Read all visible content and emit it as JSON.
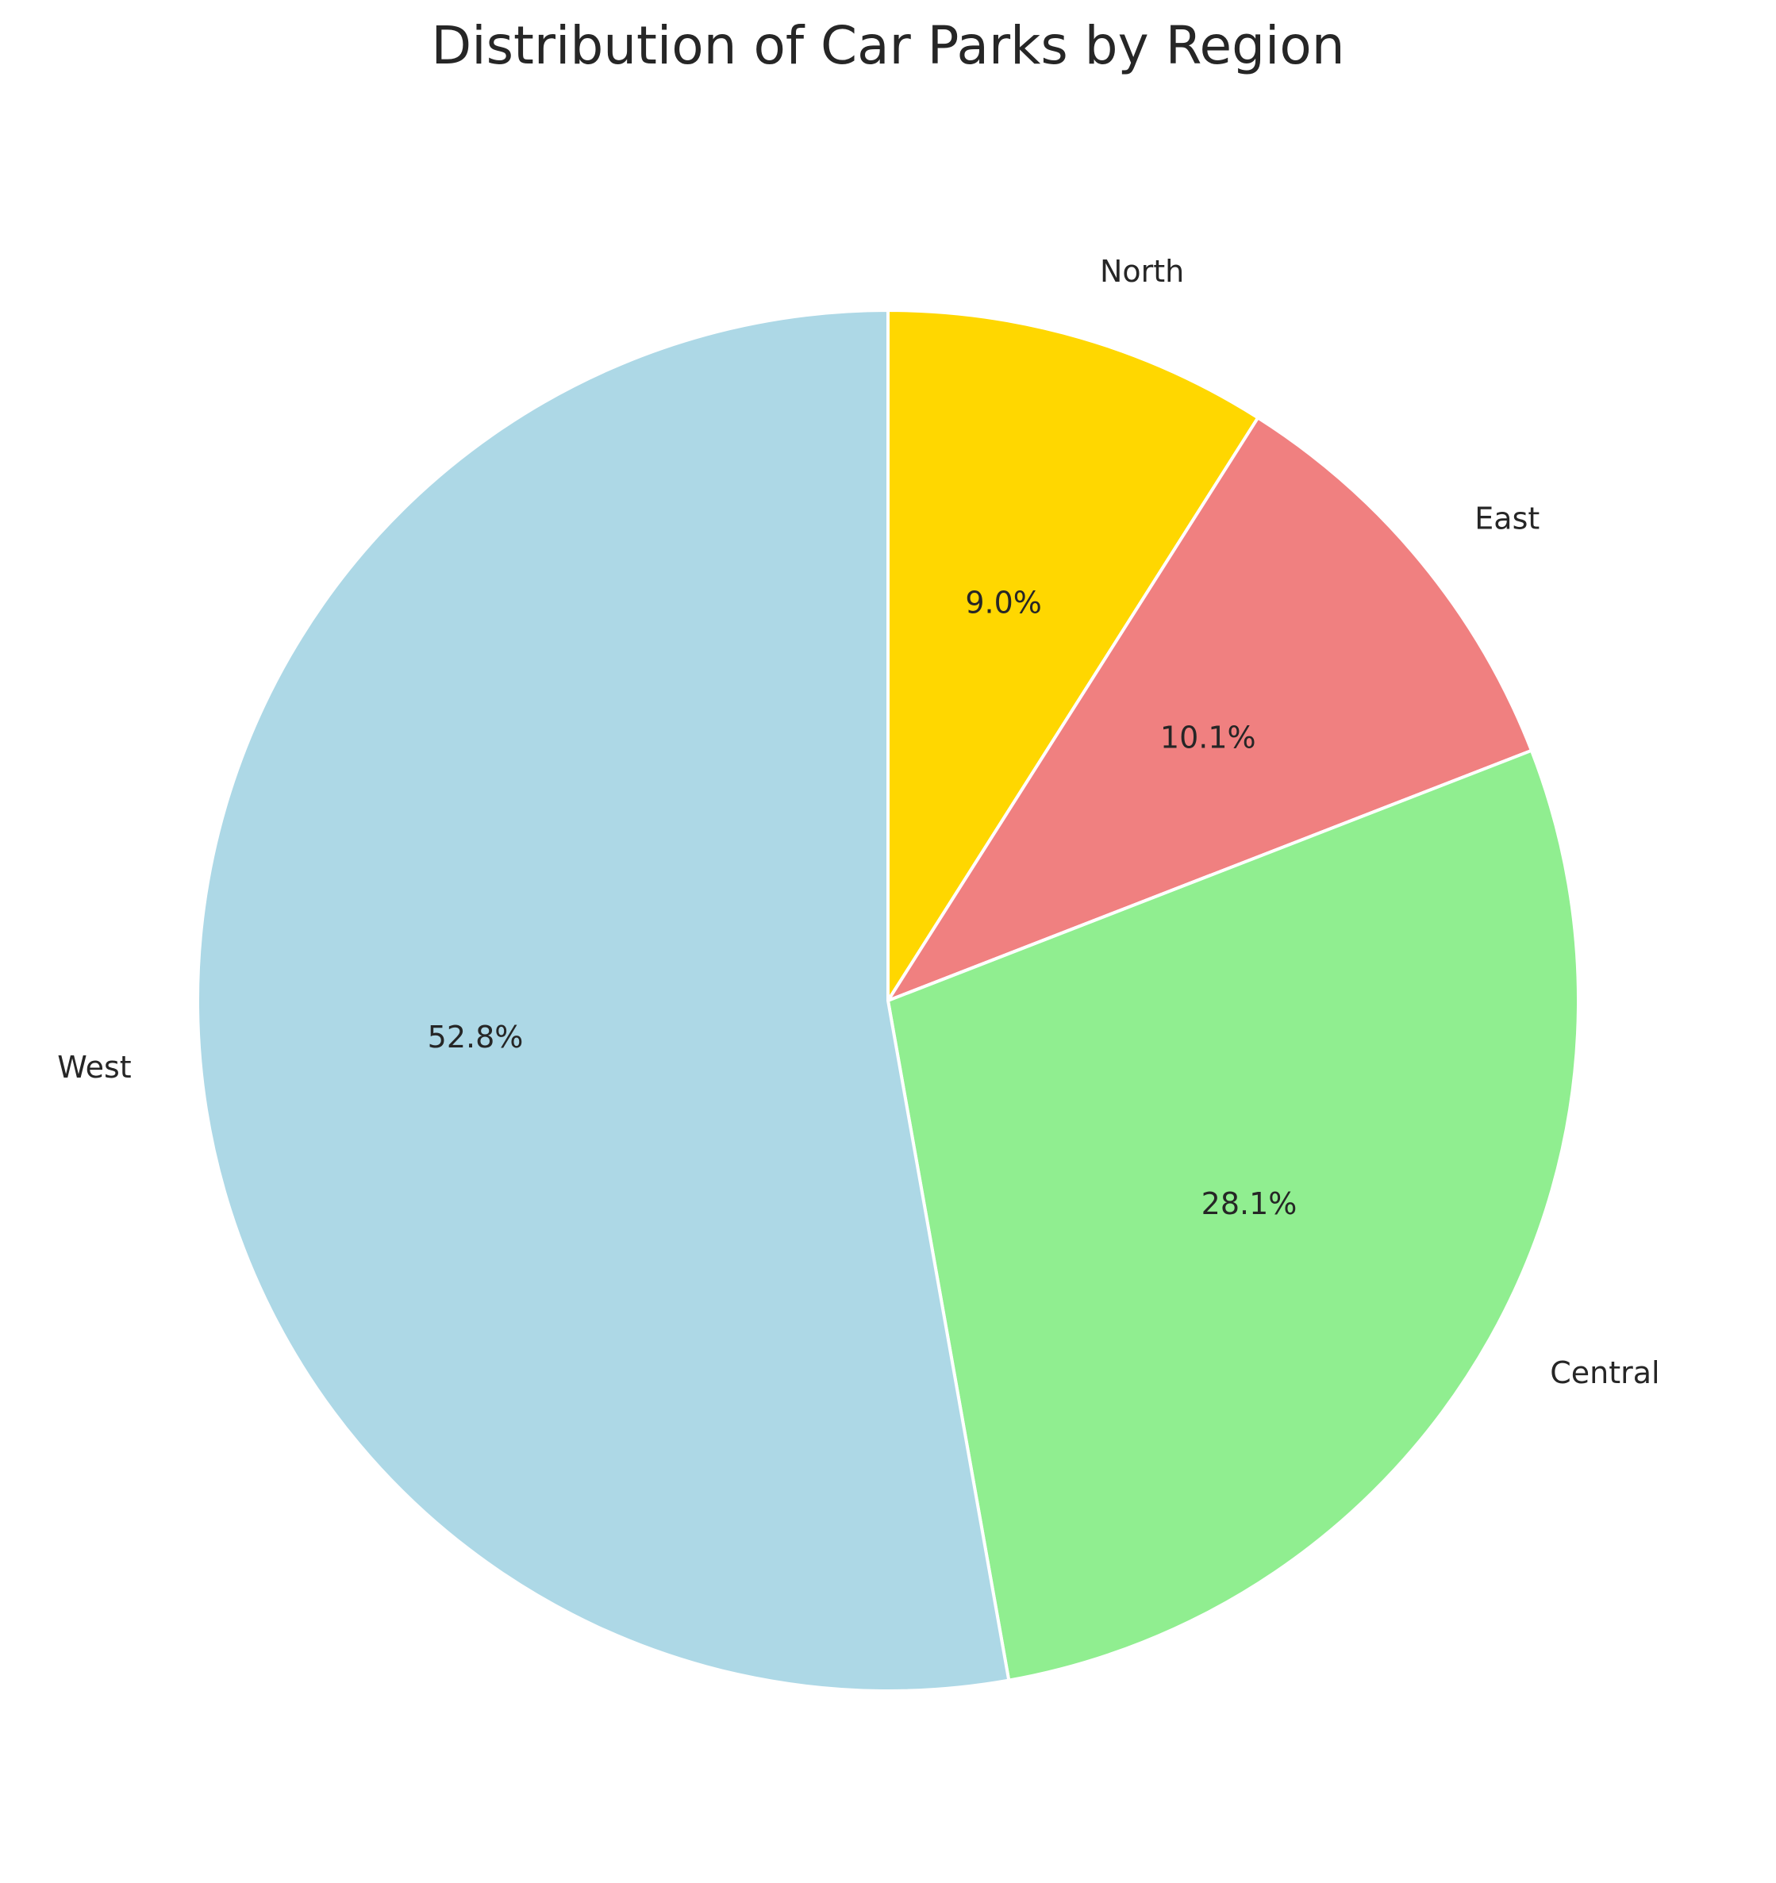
{
  "chart_data": {
    "type": "pie",
    "title": "Distribution of Car Parks by Region",
    "categories": [
      "North",
      "East",
      "Central",
      "West"
    ],
    "values": [
      9.0,
      10.1,
      28.1,
      52.8
    ],
    "value_labels": [
      "9.0%",
      "10.1%",
      "28.1%",
      "52.8%"
    ],
    "colors": [
      "#ffd700",
      "#f08080",
      "#90ee90",
      "#add8e6"
    ],
    "start_angle_deg": 90,
    "direction": "clockwise",
    "legend": "none"
  }
}
